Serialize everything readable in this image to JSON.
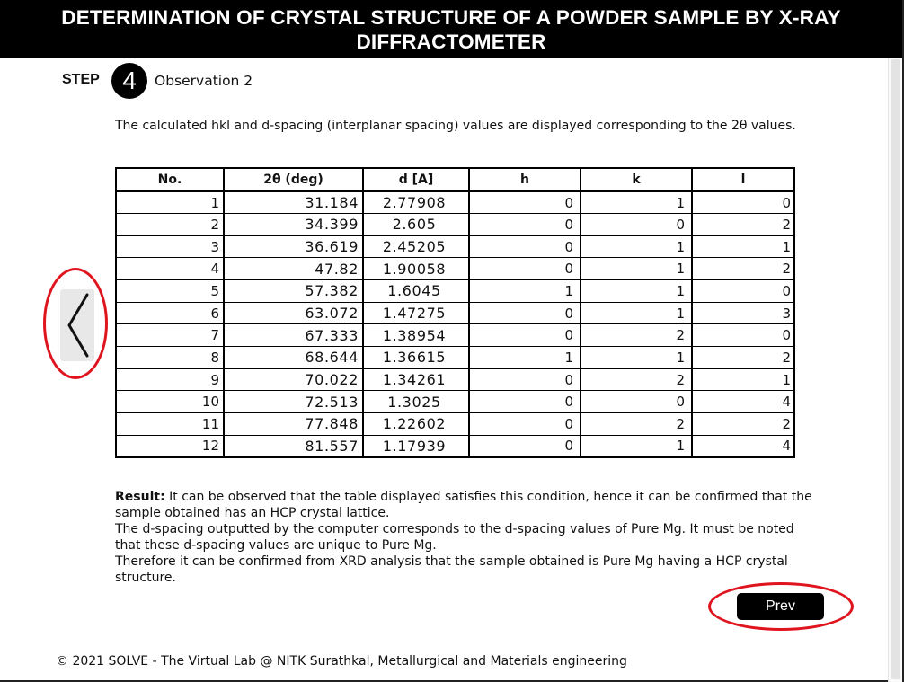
{
  "header": {
    "title": "DETERMINATION OF CRYSTAL STRUCTURE OF A POWDER SAMPLE BY X-RAY DIFFRACTOMETER"
  },
  "step": {
    "label": "STEP",
    "number": "4",
    "title": "Observation 2"
  },
  "intro": "The calculated hkl and d-spacing (interplanar spacing) values are displayed corresponding to the 2θ values.",
  "table": {
    "headers": [
      "No.",
      "2θ (deg)",
      "d [A]",
      "h",
      "k",
      "l"
    ],
    "rows": [
      [
        "1",
        "31.184",
        "2.77908",
        "0",
        "1",
        "0"
      ],
      [
        "2",
        "34.399",
        "2.605",
        "0",
        "0",
        "2"
      ],
      [
        "3",
        "36.619",
        "2.45205",
        "0",
        "1",
        "1"
      ],
      [
        "4",
        "47.82",
        "1.90058",
        "0",
        "1",
        "2"
      ],
      [
        "5",
        "57.382",
        "1.6045",
        "1",
        "1",
        "0"
      ],
      [
        "6",
        "63.072",
        "1.47275",
        "0",
        "1",
        "3"
      ],
      [
        "7",
        "67.333",
        "1.38954",
        "0",
        "2",
        "0"
      ],
      [
        "8",
        "68.644",
        "1.36615",
        "1",
        "1",
        "2"
      ],
      [
        "9",
        "70.022",
        "1.34261",
        "0",
        "2",
        "1"
      ],
      [
        "10",
        "72.513",
        "1.3025",
        "0",
        "0",
        "4"
      ],
      [
        "11",
        "77.848",
        "1.22602",
        "0",
        "2",
        "2"
      ],
      [
        "12",
        "81.557",
        "1.17939",
        "0",
        "1",
        "4"
      ]
    ]
  },
  "result": {
    "label": "Result:",
    "line1": " It can be observed that the table displayed satisfies this condition, hence it can be confirmed that the sample obtained has an HCP crystal lattice.",
    "line2": "The d-spacing outputted by the computer corresponds to the d-spacing values of Pure Mg. It must be noted that these d-spacing values are unique to Pure Mg.",
    "line3": "Therefore it can be confirmed from XRD analysis that the sample obtained is Pure Mg having a HCP crystal structure."
  },
  "nav": {
    "prev_label": "Prev",
    "prev_arrow_icon": "chevron-left-icon"
  },
  "annotation_color": "#e0141e",
  "footer": "© 2021 SOLVE - The Virtual Lab @ NITK Surathkal, Metallurgical and Materials engineering"
}
